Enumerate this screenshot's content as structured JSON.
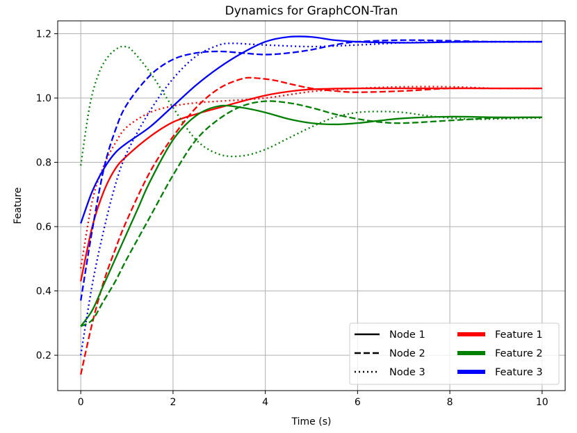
{
  "chart_data": {
    "type": "line",
    "title": "Dynamics for GraphCON-Tran",
    "xlabel": "Time (s)",
    "ylabel": "Feature",
    "xlim": [
      -0.5,
      10.5
    ],
    "ylim": [
      0.09,
      1.24
    ],
    "xticks": [
      0,
      2,
      4,
      6,
      8,
      10
    ],
    "yticks": [
      0.2,
      0.4,
      0.6,
      0.8,
      1.0,
      1.2
    ],
    "grid": true,
    "legend_position": "lower-right",
    "legend": {
      "styles": [
        {
          "label": "Node 1",
          "dash": "solid"
        },
        {
          "label": "Node 2",
          "dash": "dashed"
        },
        {
          "label": "Node 3",
          "dash": "dotted"
        }
      ],
      "features": [
        {
          "label": "Feature 1",
          "color": "#ff0000"
        },
        {
          "label": "Feature 2",
          "color": "#008000"
        },
        {
          "label": "Feature 3",
          "color": "#0000ff"
        }
      ]
    },
    "series": [
      {
        "name": "Node 1 - Feature 1",
        "node": "Node 1",
        "feature": "Feature 1",
        "color": "#ff0000",
        "dash": "solid",
        "points": [
          [
            0,
            0.43
          ],
          [
            0.25,
            0.6
          ],
          [
            0.5,
            0.71
          ],
          [
            0.75,
            0.78
          ],
          [
            1,
            0.82
          ],
          [
            1.5,
            0.88
          ],
          [
            2,
            0.925
          ],
          [
            2.5,
            0.95
          ],
          [
            3,
            0.97
          ],
          [
            3.5,
            0.99
          ],
          [
            4,
            1.008
          ],
          [
            4.5,
            1.02
          ],
          [
            5,
            1.027
          ],
          [
            6,
            1.03
          ],
          [
            7,
            1.03
          ],
          [
            8,
            1.03
          ],
          [
            9,
            1.03
          ],
          [
            10,
            1.03
          ]
        ]
      },
      {
        "name": "Node 2 - Feature 1",
        "node": "Node 2",
        "feature": "Feature 1",
        "color": "#ff0000",
        "dash": "dashed",
        "points": [
          [
            0,
            0.14
          ],
          [
            0.25,
            0.3
          ],
          [
            0.5,
            0.43
          ],
          [
            0.75,
            0.53
          ],
          [
            1,
            0.62
          ],
          [
            1.5,
            0.77
          ],
          [
            2,
            0.88
          ],
          [
            2.5,
            0.97
          ],
          [
            3,
            1.03
          ],
          [
            3.5,
            1.06
          ],
          [
            3.8,
            1.062
          ],
          [
            4.2,
            1.055
          ],
          [
            4.5,
            1.045
          ],
          [
            5,
            1.03
          ],
          [
            5.5,
            1.022
          ],
          [
            6,
            1.018
          ],
          [
            7,
            1.022
          ],
          [
            8,
            1.03
          ],
          [
            9,
            1.03
          ],
          [
            10,
            1.03
          ]
        ]
      },
      {
        "name": "Node 3 - Feature 1",
        "node": "Node 3",
        "feature": "Feature 1",
        "color": "#ff0000",
        "dash": "dotted",
        "points": [
          [
            0,
            0.47
          ],
          [
            0.25,
            0.68
          ],
          [
            0.5,
            0.79
          ],
          [
            0.75,
            0.86
          ],
          [
            1,
            0.91
          ],
          [
            1.5,
            0.955
          ],
          [
            2,
            0.975
          ],
          [
            2.5,
            0.985
          ],
          [
            3,
            0.99
          ],
          [
            4,
            1.0
          ],
          [
            5,
            1.02
          ],
          [
            6,
            1.03
          ],
          [
            7,
            1.035
          ],
          [
            8,
            1.035
          ],
          [
            9,
            1.03
          ],
          [
            10,
            1.03
          ]
        ]
      },
      {
        "name": "Node 1 - Feature 2",
        "node": "Node 1",
        "feature": "Feature 2",
        "color": "#008000",
        "dash": "solid",
        "points": [
          [
            0,
            0.29
          ],
          [
            0.25,
            0.34
          ],
          [
            0.5,
            0.42
          ],
          [
            0.75,
            0.5
          ],
          [
            1,
            0.58
          ],
          [
            1.25,
            0.66
          ],
          [
            1.5,
            0.74
          ],
          [
            2,
            0.87
          ],
          [
            2.5,
            0.945
          ],
          [
            3,
            0.975
          ],
          [
            3.5,
            0.97
          ],
          [
            4,
            0.955
          ],
          [
            4.5,
            0.935
          ],
          [
            5,
            0.922
          ],
          [
            5.5,
            0.918
          ],
          [
            6,
            0.922
          ],
          [
            6.5,
            0.93
          ],
          [
            7,
            0.937
          ],
          [
            8,
            0.942
          ],
          [
            9,
            0.94
          ],
          [
            10,
            0.94
          ]
        ]
      },
      {
        "name": "Node 2 - Feature 2",
        "node": "Node 2",
        "feature": "Feature 2",
        "color": "#008000",
        "dash": "dashed",
        "points": [
          [
            0,
            0.29
          ],
          [
            0.25,
            0.31
          ],
          [
            0.5,
            0.37
          ],
          [
            0.75,
            0.43
          ],
          [
            1,
            0.5
          ],
          [
            1.5,
            0.63
          ],
          [
            2,
            0.76
          ],
          [
            2.5,
            0.87
          ],
          [
            3,
            0.935
          ],
          [
            3.5,
            0.975
          ],
          [
            4,
            0.99
          ],
          [
            4.5,
            0.985
          ],
          [
            5,
            0.97
          ],
          [
            5.5,
            0.95
          ],
          [
            6,
            0.935
          ],
          [
            6.5,
            0.925
          ],
          [
            7,
            0.922
          ],
          [
            8,
            0.93
          ],
          [
            9,
            0.938
          ],
          [
            10,
            0.94
          ]
        ]
      },
      {
        "name": "Node 3 - Feature 2",
        "node": "Node 3",
        "feature": "Feature 2",
        "color": "#008000",
        "dash": "dotted",
        "points": [
          [
            0,
            0.79
          ],
          [
            0.2,
            0.98
          ],
          [
            0.4,
            1.08
          ],
          [
            0.6,
            1.13
          ],
          [
            0.8,
            1.155
          ],
          [
            0.95,
            1.16
          ],
          [
            1.1,
            1.15
          ],
          [
            1.5,
            1.08
          ],
          [
            2,
            0.97
          ],
          [
            2.5,
            0.87
          ],
          [
            3,
            0.825
          ],
          [
            3.5,
            0.82
          ],
          [
            4,
            0.84
          ],
          [
            4.5,
            0.875
          ],
          [
            5,
            0.91
          ],
          [
            5.5,
            0.94
          ],
          [
            6,
            0.955
          ],
          [
            6.5,
            0.958
          ],
          [
            7,
            0.955
          ],
          [
            7.5,
            0.945
          ],
          [
            8,
            0.938
          ],
          [
            8.5,
            0.934
          ],
          [
            9,
            0.935
          ],
          [
            10,
            0.938
          ]
        ]
      },
      {
        "name": "Node 1 - Feature 3",
        "node": "Node 1",
        "feature": "Feature 3",
        "color": "#0000ff",
        "dash": "solid",
        "points": [
          [
            0,
            0.61
          ],
          [
            0.25,
            0.71
          ],
          [
            0.5,
            0.78
          ],
          [
            0.75,
            0.83
          ],
          [
            1,
            0.86
          ],
          [
            1.5,
            0.91
          ],
          [
            2,
            0.975
          ],
          [
            2.5,
            1.04
          ],
          [
            3,
            1.095
          ],
          [
            3.5,
            1.14
          ],
          [
            4,
            1.175
          ],
          [
            4.5,
            1.19
          ],
          [
            5,
            1.19
          ],
          [
            5.5,
            1.18
          ],
          [
            6,
            1.175
          ],
          [
            7,
            1.172
          ],
          [
            8,
            1.174
          ],
          [
            9,
            1.175
          ],
          [
            10,
            1.175
          ]
        ]
      },
      {
        "name": "Node 2 - Feature 3",
        "node": "Node 2",
        "feature": "Feature 3",
        "color": "#0000ff",
        "dash": "dashed",
        "points": [
          [
            0,
            0.37
          ],
          [
            0.25,
            0.59
          ],
          [
            0.5,
            0.78
          ],
          [
            0.75,
            0.9
          ],
          [
            1,
            0.98
          ],
          [
            1.5,
            1.07
          ],
          [
            2,
            1.12
          ],
          [
            2.5,
            1.14
          ],
          [
            3,
            1.145
          ],
          [
            3.5,
            1.14
          ],
          [
            4,
            1.135
          ],
          [
            4.5,
            1.14
          ],
          [
            5,
            1.15
          ],
          [
            5.5,
            1.165
          ],
          [
            6,
            1.175
          ],
          [
            7,
            1.18
          ],
          [
            8,
            1.178
          ],
          [
            9,
            1.175
          ],
          [
            10,
            1.175
          ]
        ]
      },
      {
        "name": "Node 3 - Feature 3",
        "node": "Node 3",
        "feature": "Feature 3",
        "color": "#0000ff",
        "dash": "dotted",
        "points": [
          [
            0,
            0.2
          ],
          [
            0.25,
            0.42
          ],
          [
            0.5,
            0.59
          ],
          [
            0.75,
            0.73
          ],
          [
            1,
            0.83
          ],
          [
            1.5,
            0.96
          ],
          [
            2,
            1.06
          ],
          [
            2.5,
            1.13
          ],
          [
            3,
            1.165
          ],
          [
            3.3,
            1.17
          ],
          [
            3.6,
            1.168
          ],
          [
            4,
            1.165
          ],
          [
            5,
            1.16
          ],
          [
            6,
            1.165
          ],
          [
            7,
            1.172
          ],
          [
            8,
            1.175
          ],
          [
            9,
            1.175
          ],
          [
            10,
            1.175
          ]
        ]
      }
    ]
  }
}
